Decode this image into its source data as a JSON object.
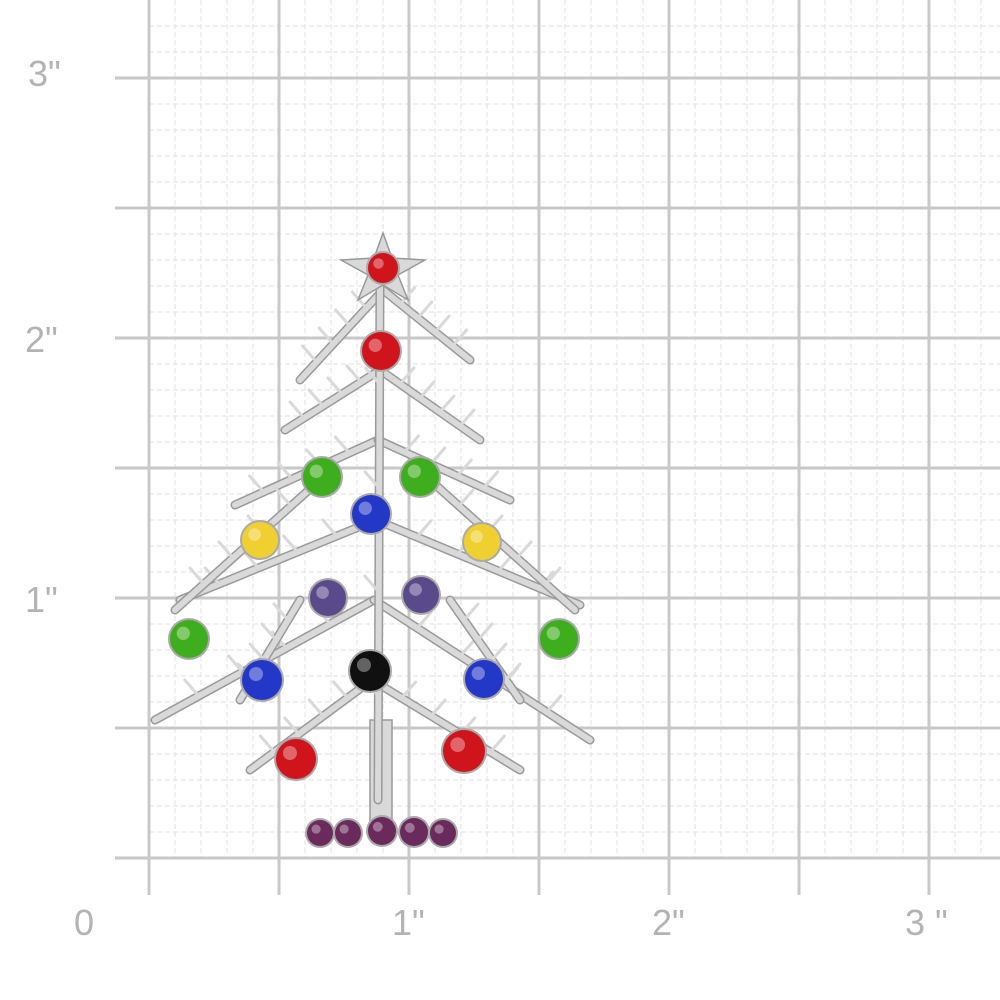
{
  "ruler": {
    "y_labels": [
      "3\"",
      "2\"",
      "1\""
    ],
    "x_labels": [
      "0",
      "1\"",
      "2\"",
      "3 \""
    ],
    "grid_color": "#c8c8c8",
    "label_color": "#b3b3b3"
  },
  "product": {
    "subject": "christmas-tree-brooch",
    "metal_color": "#d9d9d9",
    "gem_colors": {
      "red": "#d0141c",
      "green": "#3fae1e",
      "blue": "#2438c8",
      "purple": "#5a4a8c",
      "black": "#101010",
      "aurora": "#f0d030",
      "amethyst": "#6b2a5c"
    }
  }
}
